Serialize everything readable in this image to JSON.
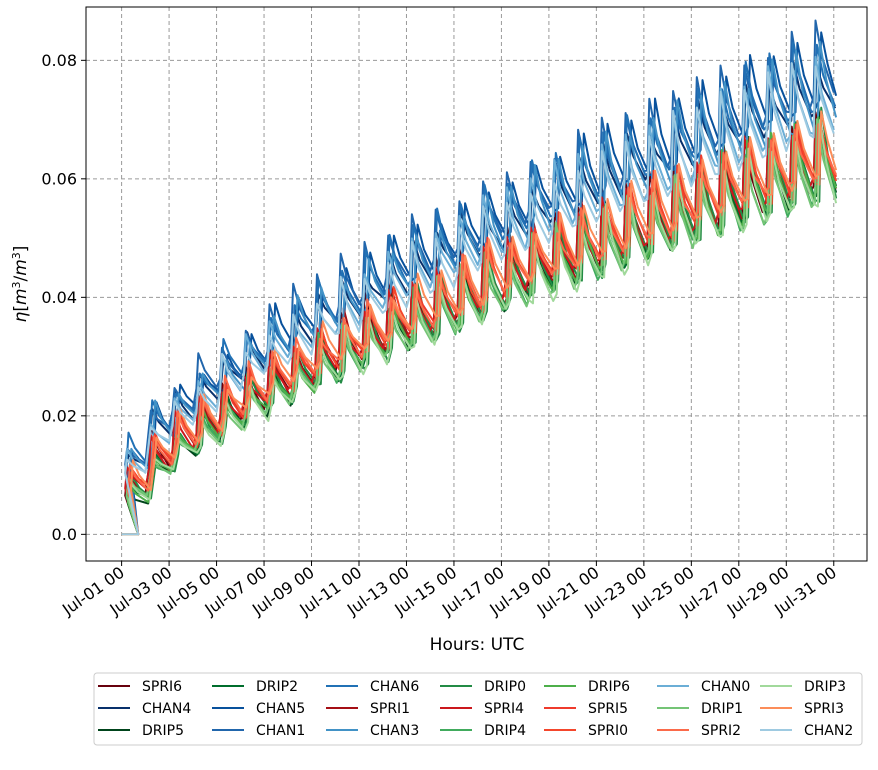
{
  "chart_data": {
    "type": "line",
    "xlabel": "Hours: UTC",
    "ylabel": "η[m³/m³]",
    "ylabel_parts": {
      "symbol": "η",
      "open": "[",
      "unit1": "m",
      "sup": "3",
      "slash": "/",
      "unit2": "m",
      "close": "]"
    },
    "x_unit": "days since Jul-01 00",
    "x_ticks": [
      {
        "value": 0,
        "label": "Jul-01 00"
      },
      {
        "value": 2,
        "label": "Jul-03 00"
      },
      {
        "value": 4,
        "label": "Jul-05 00"
      },
      {
        "value": 6,
        "label": "Jul-07 00"
      },
      {
        "value": 8,
        "label": "Jul-09 00"
      },
      {
        "value": 10,
        "label": "Jul-11 00"
      },
      {
        "value": 12,
        "label": "Jul-13 00"
      },
      {
        "value": 14,
        "label": "Jul-15 00"
      },
      {
        "value": 16,
        "label": "Jul-17 00"
      },
      {
        "value": 18,
        "label": "Jul-19 00"
      },
      {
        "value": 20,
        "label": "Jul-21 00"
      },
      {
        "value": 22,
        "label": "Jul-23 00"
      },
      {
        "value": 24,
        "label": "Jul-25 00"
      },
      {
        "value": 26,
        "label": "Jul-27 00"
      },
      {
        "value": 28,
        "label": "Jul-29 00"
      },
      {
        "value": 30,
        "label": "Jul-31 00"
      }
    ],
    "y_ticks": [
      {
        "value": 0.0,
        "label": "0.0"
      },
      {
        "value": 0.02,
        "label": "0.02"
      },
      {
        "value": 0.04,
        "label": "0.04"
      },
      {
        "value": 0.06,
        "label": "0.06"
      },
      {
        "value": 0.08,
        "label": "0.08"
      }
    ],
    "xlim": [
      -1.5,
      31.4
    ],
    "ylim": [
      -0.0045,
      0.089
    ],
    "grid": true,
    "legend_position": "bottom-center",
    "legend_columns": 7,
    "series": [
      {
        "name": "SPRI6",
        "color": "#67000d",
        "peak_start": 0.0115,
        "peak_end": 0.0715,
        "trough_start": 0.0075,
        "trough_end": 0.0585
      },
      {
        "name": "CHAN4",
        "color": "#08306b",
        "peak_start": 0.0145,
        "peak_end": 0.08,
        "trough_start": 0.011,
        "trough_end": 0.072
      },
      {
        "name": "DRIP5",
        "color": "#00441b",
        "peak_start": 0.008,
        "peak_end": 0.071,
        "trough_start": 0.006,
        "trough_end": 0.0575
      },
      {
        "name": "DRIP2",
        "color": "#006d2c",
        "peak_start": 0.0085,
        "peak_end": 0.07,
        "trough_start": 0.0062,
        "trough_end": 0.058
      },
      {
        "name": "CHAN5",
        "color": "#08519c",
        "peak_start": 0.015,
        "peak_end": 0.0845,
        "trough_start": 0.0115,
        "trough_end": 0.0735
      },
      {
        "name": "CHAN1",
        "color": "#2166ac",
        "peak_start": 0.016,
        "peak_end": 0.085,
        "trough_start": 0.012,
        "trough_end": 0.074
      },
      {
        "name": "CHAN6",
        "color": "#2171b5",
        "peak_start": 0.0155,
        "peak_end": 0.0835,
        "trough_start": 0.0118,
        "trough_end": 0.0725
      },
      {
        "name": "SPRI1",
        "color": "#a50f15",
        "peak_start": 0.011,
        "peak_end": 0.0705,
        "trough_start": 0.0072,
        "trough_end": 0.059
      },
      {
        "name": "CHAN3",
        "color": "#4292c6",
        "peak_start": 0.015,
        "peak_end": 0.082,
        "trough_start": 0.0112,
        "trough_end": 0.07
      },
      {
        "name": "DRIP0",
        "color": "#238b45",
        "peak_start": 0.0082,
        "peak_end": 0.0705,
        "trough_start": 0.006,
        "trough_end": 0.0575
      },
      {
        "name": "SPRI4",
        "color": "#cb181d",
        "peak_start": 0.0105,
        "peak_end": 0.07,
        "trough_start": 0.007,
        "trough_end": 0.06
      },
      {
        "name": "DRIP4",
        "color": "#41ab5d",
        "peak_start": 0.008,
        "peak_end": 0.0695,
        "trough_start": 0.0058,
        "trough_end": 0.057
      },
      {
        "name": "DRIP6",
        "color": "#4daf4a",
        "peak_start": 0.0082,
        "peak_end": 0.0698,
        "trough_start": 0.006,
        "trough_end": 0.0578
      },
      {
        "name": "SPRI5",
        "color": "#ef3b2c",
        "peak_start": 0.0112,
        "peak_end": 0.071,
        "trough_start": 0.0075,
        "trough_end": 0.0605
      },
      {
        "name": "SPRI0",
        "color": "#f4462c",
        "peak_start": 0.0108,
        "peak_end": 0.07,
        "trough_start": 0.0072,
        "trough_end": 0.0598
      },
      {
        "name": "CHAN0",
        "color": "#6baed6",
        "peak_start": 0.014,
        "peak_end": 0.081,
        "trough_start": 0.0105,
        "trough_end": 0.069
      },
      {
        "name": "DRIP1",
        "color": "#74c476",
        "peak_start": 0.0078,
        "peak_end": 0.069,
        "trough_start": 0.0058,
        "trough_end": 0.057
      },
      {
        "name": "SPRI2",
        "color": "#fb6a4a",
        "peak_start": 0.011,
        "peak_end": 0.0695,
        "trough_start": 0.0075,
        "trough_end": 0.061
      },
      {
        "name": "DRIP3",
        "color": "#a1d99b",
        "peak_start": 0.0075,
        "peak_end": 0.0685,
        "trough_start": 0.0056,
        "trough_end": 0.0565
      },
      {
        "name": "SPRI3",
        "color": "#fc8d59",
        "peak_start": 0.0112,
        "peak_end": 0.0705,
        "trough_start": 0.0078,
        "trough_end": 0.0615
      },
      {
        "name": "CHAN2",
        "color": "#9ecae1",
        "peak_start": 0.0135,
        "peak_end": 0.08,
        "trough_start": 0.01,
        "trough_end": 0.068
      }
    ]
  }
}
